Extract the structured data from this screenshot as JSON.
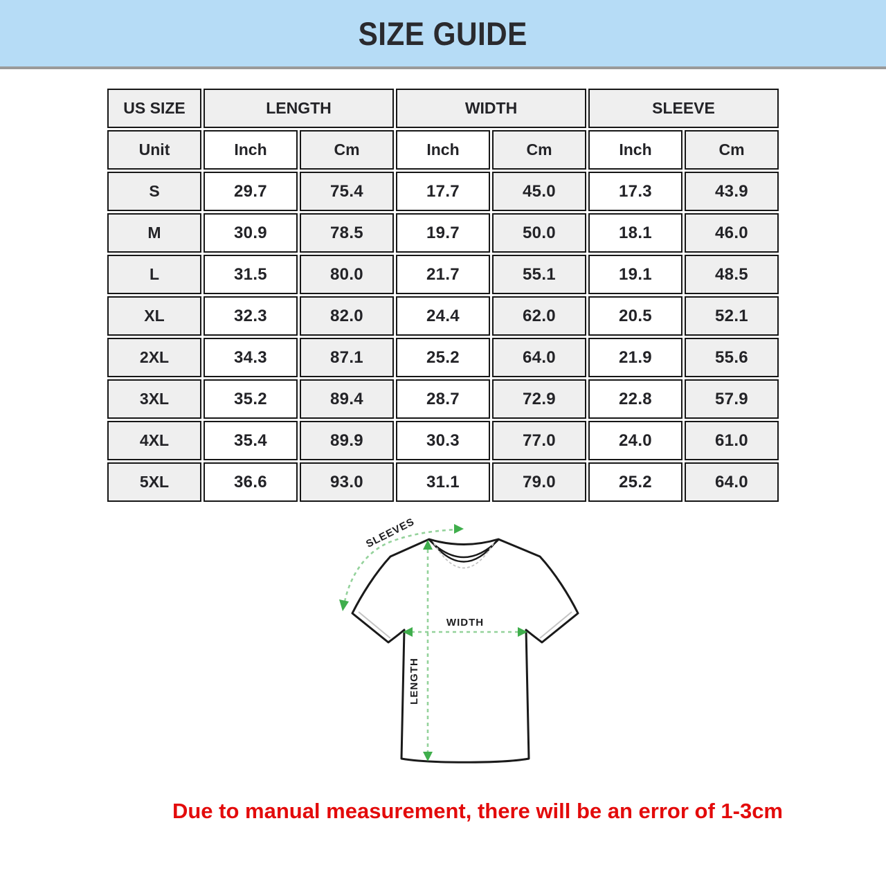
{
  "banner": {
    "title": "SIZE GUIDE"
  },
  "table": {
    "group_headers": [
      {
        "label": "US SIZE",
        "span": 1
      },
      {
        "label": "LENGTH",
        "span": 2
      },
      {
        "label": "WIDTH",
        "span": 2
      },
      {
        "label": "SLEEVE",
        "span": 2
      }
    ],
    "unit_row": [
      "Unit",
      "Inch",
      "Cm",
      "Inch",
      "Cm",
      "Inch",
      "Cm"
    ],
    "rows": [
      {
        "size": "S",
        "values": [
          "29.7",
          "75.4",
          "17.7",
          "45.0",
          "17.3",
          "43.9"
        ]
      },
      {
        "size": "M",
        "values": [
          "30.9",
          "78.5",
          "19.7",
          "50.0",
          "18.1",
          "46.0"
        ]
      },
      {
        "size": "L",
        "values": [
          "31.5",
          "80.0",
          "21.7",
          "55.1",
          "19.1",
          "48.5"
        ]
      },
      {
        "size": "XL",
        "values": [
          "32.3",
          "82.0",
          "24.4",
          "62.0",
          "20.5",
          "52.1"
        ]
      },
      {
        "size": "2XL",
        "values": [
          "34.3",
          "87.1",
          "25.2",
          "64.0",
          "21.9",
          "55.6"
        ]
      },
      {
        "size": "3XL",
        "values": [
          "35.2",
          "89.4",
          "28.7",
          "72.9",
          "22.8",
          "57.9"
        ]
      },
      {
        "size": "4XL",
        "values": [
          "35.4",
          "89.9",
          "30.3",
          "77.0",
          "24.0",
          "61.0"
        ]
      },
      {
        "size": "5XL",
        "values": [
          "36.6",
          "93.0",
          "31.1",
          "79.0",
          "25.2",
          "64.0"
        ]
      }
    ]
  },
  "diagram": {
    "sleeves_label": "SLEEVES",
    "width_label": "WIDTH",
    "length_label": "LENGTH"
  },
  "note": {
    "text": "Due to manual measurement, there will be an error of 1-3cm"
  },
  "colors": {
    "banner_bg": "#b6dcf6",
    "table_border": "#161616",
    "cell_gray": "#efefef",
    "cell_white": "#ffffff",
    "note_red": "#e30b0b",
    "arrow_green": "#3fae4c",
    "dash_green": "#94d29b"
  }
}
